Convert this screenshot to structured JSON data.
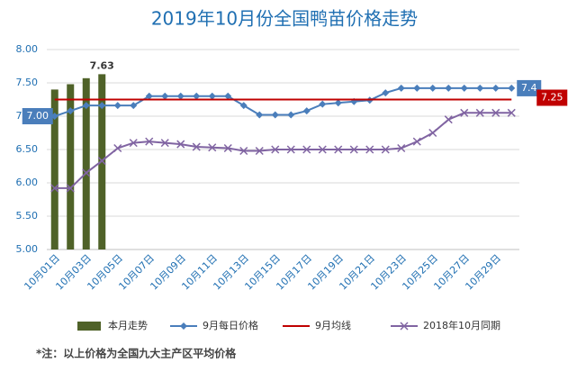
{
  "chart_data": {
    "type": "combo",
    "title": "2019年10月份全国鸭苗价格走势",
    "categories": [
      "10月01日",
      null,
      "10月03日",
      null,
      "10月05日",
      null,
      "10月07日",
      null,
      "10月09日",
      null,
      "10月11日",
      null,
      "10月13日",
      null,
      "10月15日",
      null,
      "10月17日",
      null,
      "10月19日",
      null,
      "10月21日",
      null,
      "10月23日",
      null,
      "10月25日",
      null,
      "10月27日",
      null,
      "10月29日",
      null
    ],
    "ylim": [
      5,
      8
    ],
    "yticks": [
      {
        "value": 5,
        "label": "5.00"
      },
      {
        "value": 5.5,
        "label": "5.50"
      },
      {
        "value": 6,
        "label": "6.00"
      },
      {
        "value": 6.5,
        "label": "6.50"
      },
      {
        "value": 7,
        "label": "7.00"
      },
      {
        "value": 7.5,
        "label": "7.50"
      },
      {
        "value": 8,
        "label": "8.00"
      }
    ],
    "grid": true,
    "legend": "bottom",
    "series": [
      {
        "name": "本月走势",
        "type": "bar",
        "color": "#4f6228",
        "values": [
          7.4,
          7.48,
          7.57,
          7.63,
          null,
          null,
          null,
          null,
          null,
          null,
          null,
          null,
          null,
          null,
          null,
          null,
          null,
          null,
          null,
          null,
          null,
          null,
          null,
          null,
          null,
          null,
          null,
          null,
          null,
          null
        ],
        "value_labels": [
          null,
          null,
          null,
          "7.63",
          null,
          null,
          null,
          null,
          null,
          null,
          null,
          null,
          null,
          null,
          null,
          null,
          null,
          null,
          null,
          null,
          null,
          null,
          null,
          null,
          null,
          null,
          null,
          null,
          null,
          null
        ]
      },
      {
        "name": "9月每日价格",
        "type": "line",
        "marker": "diamond",
        "color": "#4a7ebb",
        "values": [
          7.0,
          7.08,
          7.16,
          7.16,
          7.16,
          7.16,
          7.3,
          7.3,
          7.3,
          7.3,
          7.3,
          7.3,
          7.16,
          7.02,
          7.02,
          7.02,
          7.08,
          7.18,
          7.2,
          7.22,
          7.24,
          7.35,
          7.42,
          7.42,
          7.42,
          7.42,
          7.42,
          7.42,
          7.42,
          7.42
        ],
        "value_labels": [
          "7.00",
          null,
          null,
          null,
          null,
          null,
          null,
          null,
          null,
          null,
          null,
          null,
          null,
          null,
          null,
          null,
          null,
          null,
          null,
          null,
          null,
          null,
          null,
          null,
          null,
          null,
          null,
          null,
          null,
          "7.4"
        ]
      },
      {
        "name": "9月均线",
        "type": "line",
        "marker": "none",
        "color": "#c00000",
        "values": [
          7.25,
          7.25,
          7.25,
          7.25,
          7.25,
          7.25,
          7.25,
          7.25,
          7.25,
          7.25,
          7.25,
          7.25,
          7.25,
          7.25,
          7.25,
          7.25,
          7.25,
          7.25,
          7.25,
          7.25,
          7.25,
          7.25,
          7.25,
          7.25,
          7.25,
          7.25,
          7.25,
          7.25,
          7.25,
          7.25
        ],
        "value_labels": [
          null,
          null,
          null,
          null,
          null,
          null,
          null,
          null,
          null,
          null,
          null,
          null,
          null,
          null,
          null,
          null,
          null,
          null,
          null,
          null,
          null,
          null,
          null,
          null,
          null,
          null,
          null,
          null,
          null,
          "7.25"
        ]
      },
      {
        "name": "2018年10月同期",
        "type": "line",
        "marker": "x",
        "color": "#8064a2",
        "values": [
          5.92,
          5.92,
          6.15,
          6.33,
          6.52,
          6.6,
          6.62,
          6.6,
          6.58,
          6.54,
          6.53,
          6.52,
          6.48,
          6.48,
          6.5,
          6.5,
          6.5,
          6.5,
          6.5,
          6.5,
          6.5,
          6.5,
          6.52,
          6.62,
          6.75,
          6.95,
          7.05,
          7.05,
          7.05,
          7.05
        ]
      }
    ],
    "note": "*注：以上价格为全国九大主产区平均价格"
  }
}
